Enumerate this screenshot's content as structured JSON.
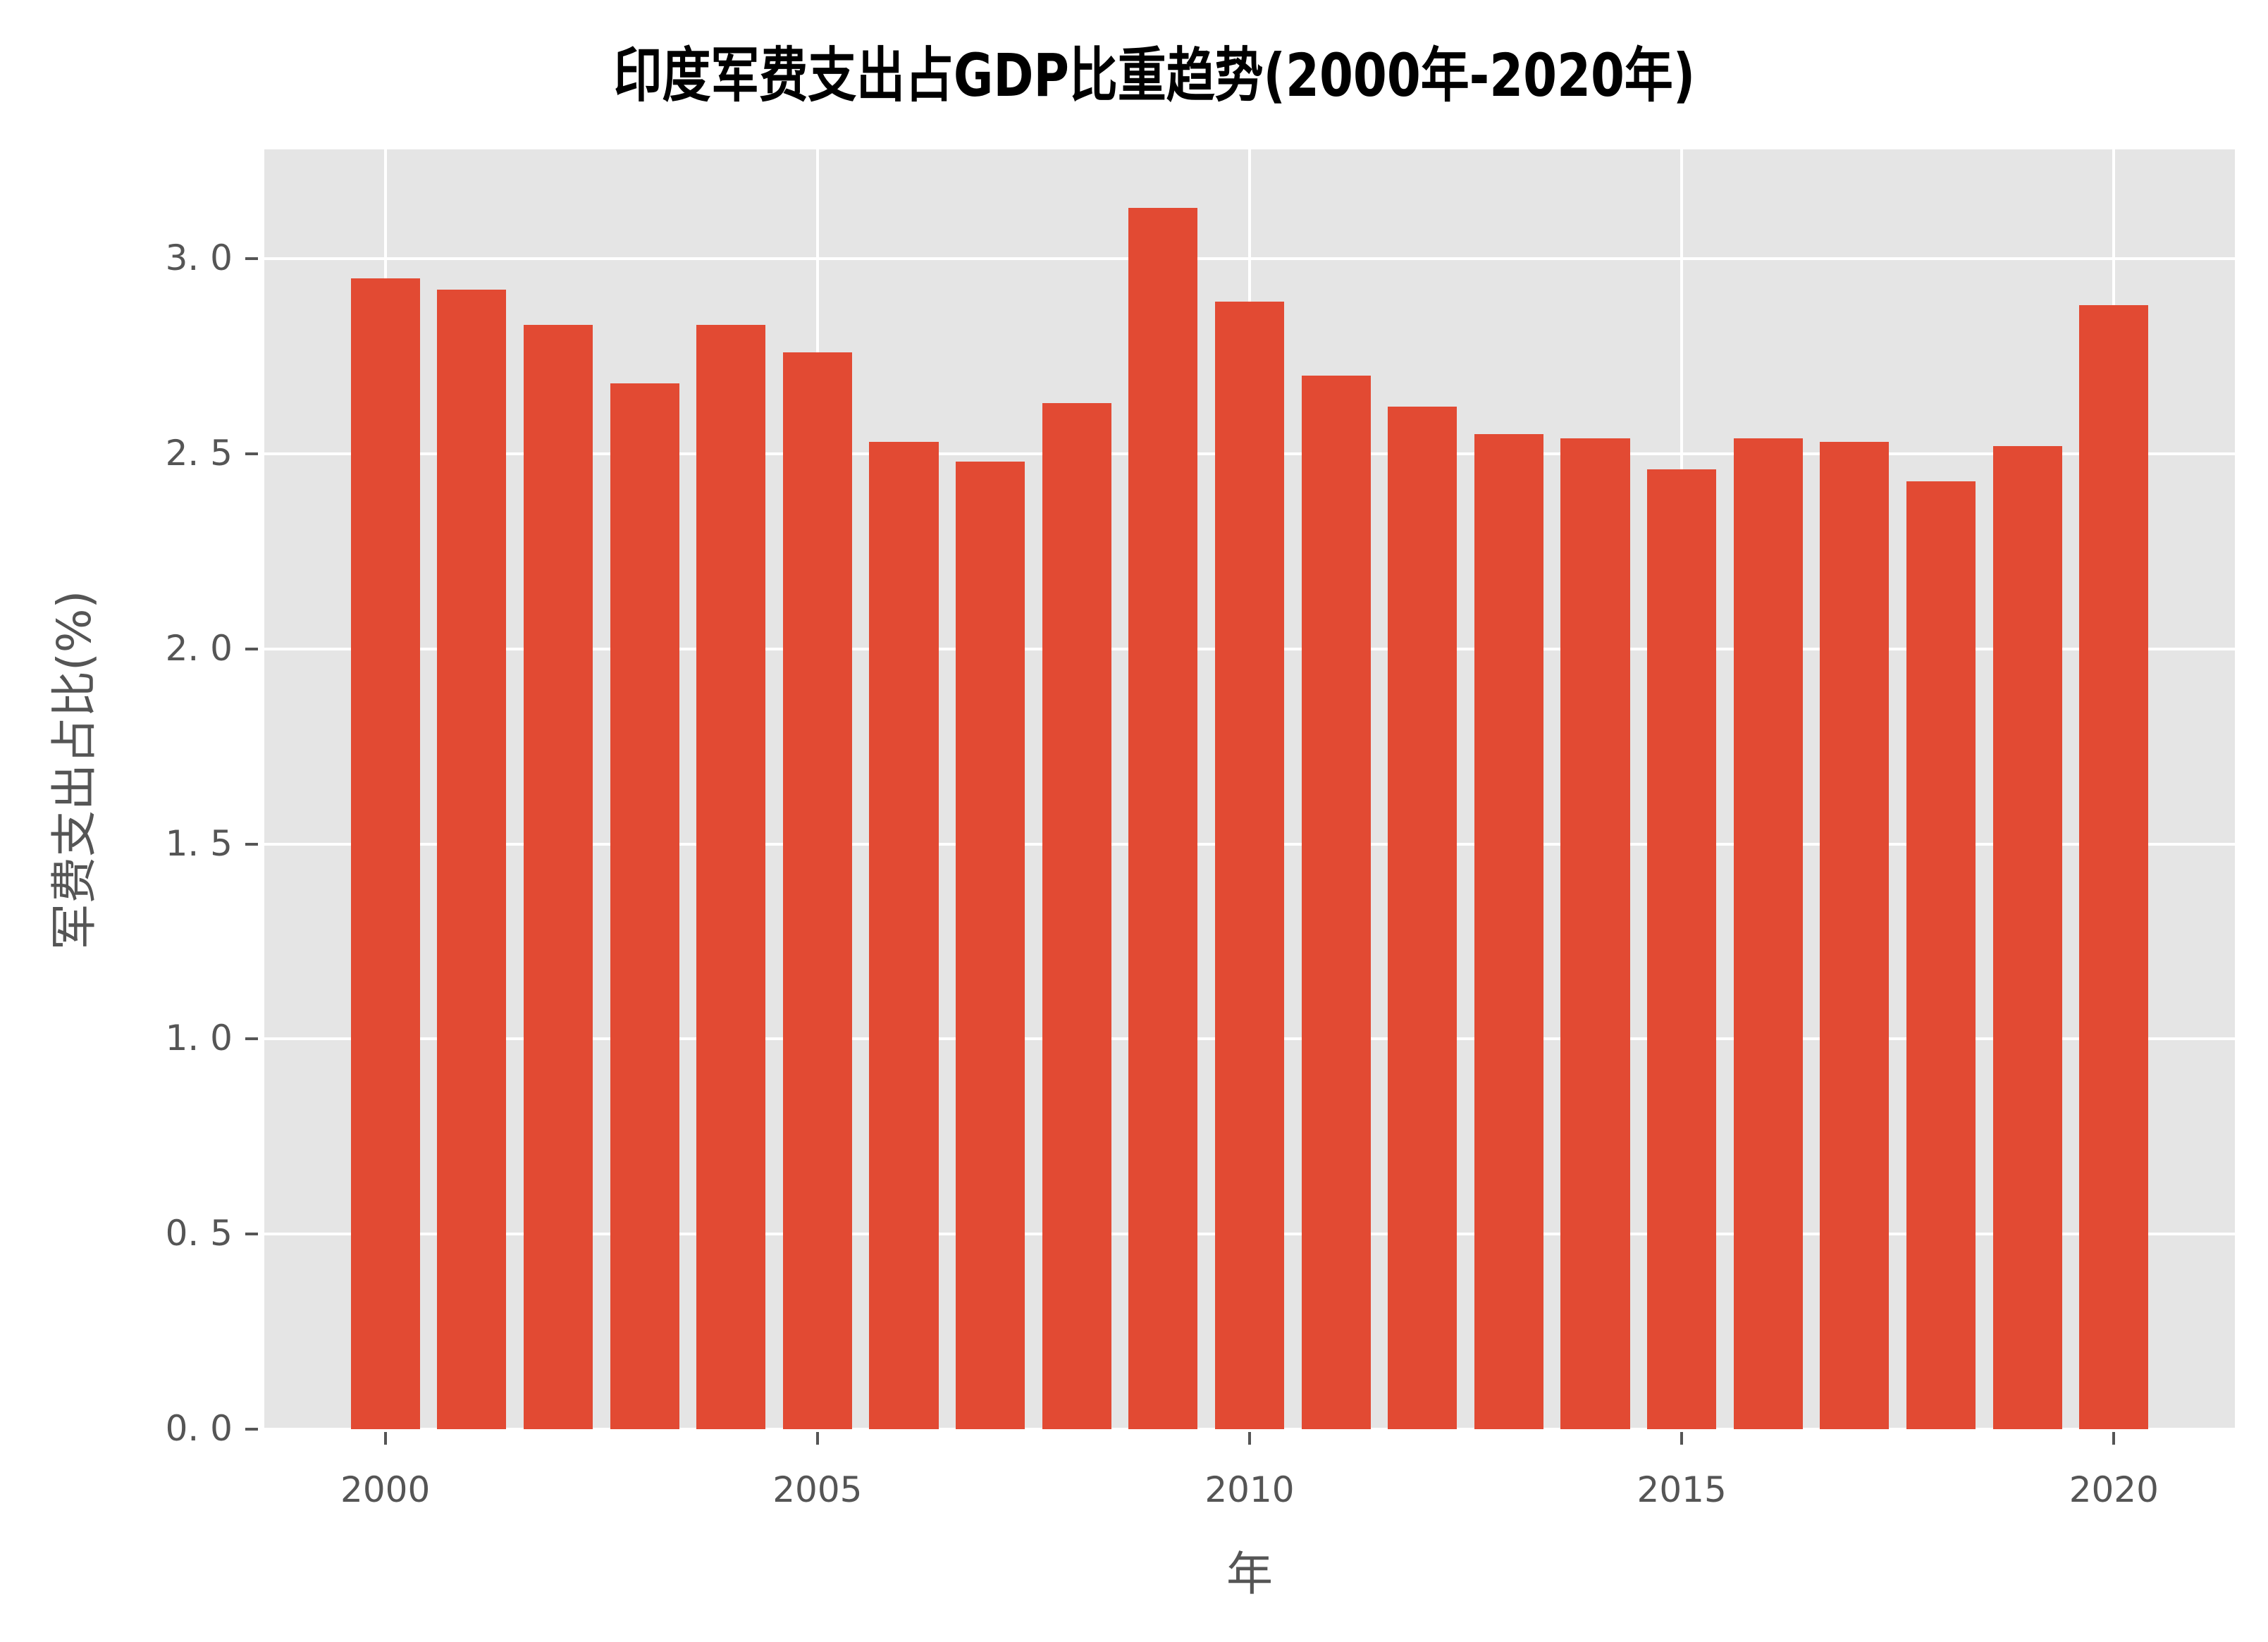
{
  "chart_data": {
    "type": "bar",
    "title": "印度军费支出占GDP比重趋势(2000年-2020年)",
    "xlabel": "年",
    "ylabel": "军费支出占比(%)",
    "categories": [
      "2000",
      "2001",
      "2002",
      "2003",
      "2004",
      "2005",
      "2006",
      "2007",
      "2008",
      "2009",
      "2010",
      "2011",
      "2012",
      "2013",
      "2014",
      "2015",
      "2016",
      "2017",
      "2018",
      "2019",
      "2020"
    ],
    "values": [
      2.95,
      2.92,
      2.83,
      2.68,
      2.83,
      2.76,
      2.53,
      2.48,
      2.63,
      3.13,
      2.89,
      2.7,
      2.62,
      2.55,
      2.54,
      2.46,
      2.54,
      2.53,
      2.43,
      2.52,
      2.88
    ],
    "ylim": [
      0,
      3.28
    ],
    "xlim": [
      1998.6,
      2021.4
    ],
    "yticks": [
      "0.0",
      "0.5",
      "1.0",
      "1.5",
      "2.0",
      "2.5",
      "3.0"
    ],
    "xticks": [
      "2000",
      "2005",
      "2010",
      "2015",
      "2020"
    ],
    "grid": true,
    "bar_color": "#e24a33",
    "background_color": "#e5e5e5",
    "legend": null
  }
}
